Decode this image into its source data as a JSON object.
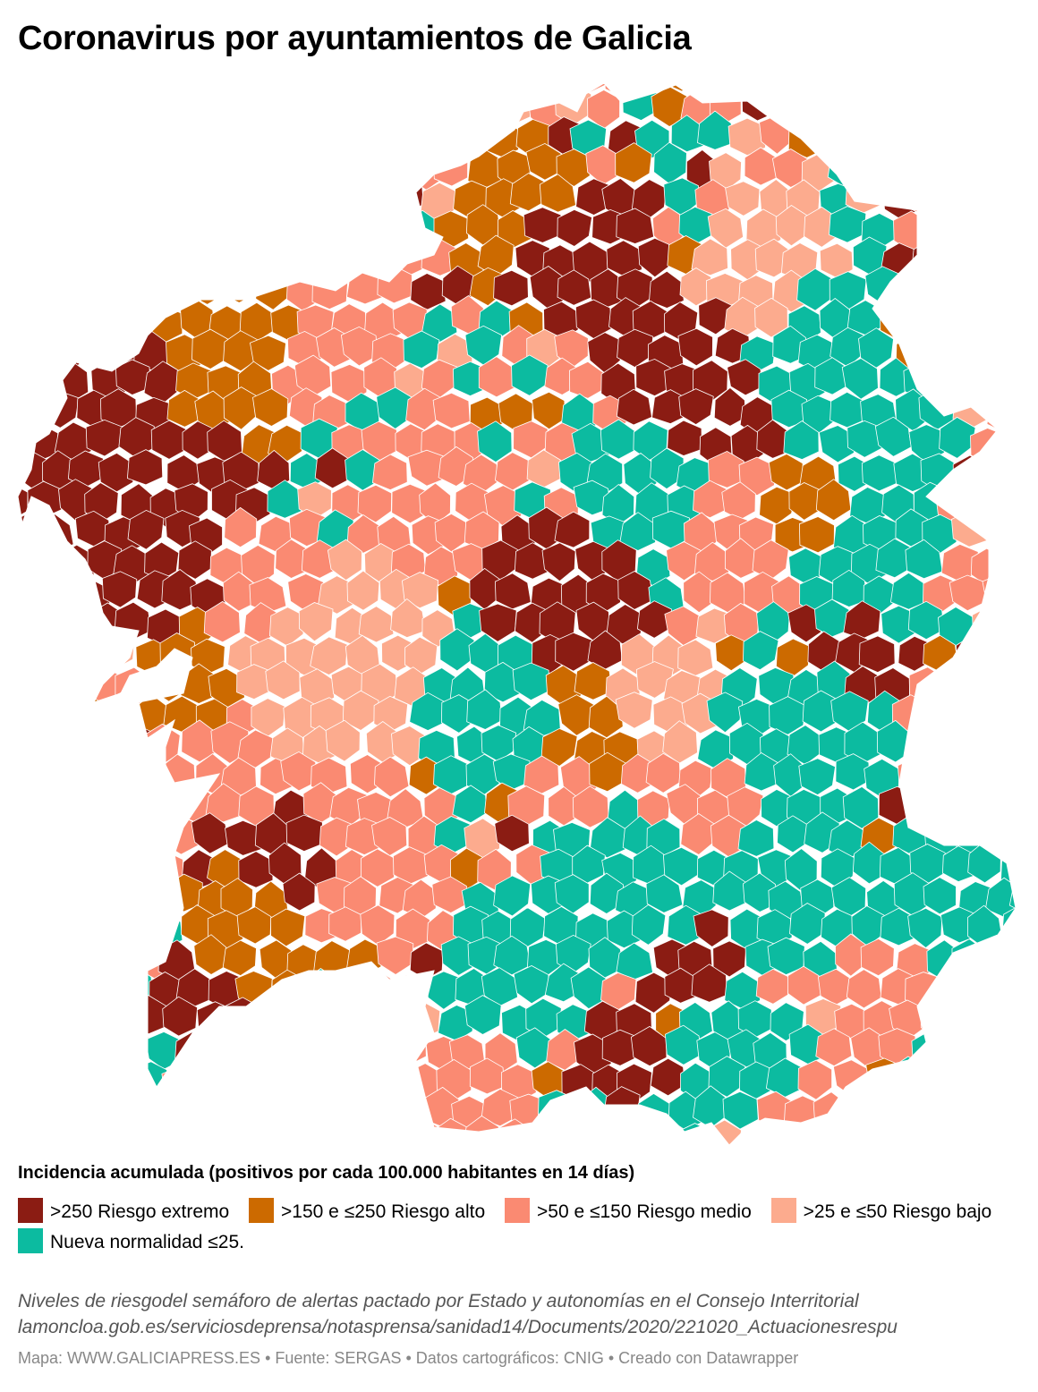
{
  "title": "Coronavirus por ayuntamientos de Galicia",
  "legend": {
    "title": "Incidencia acumulada (positivos por cada 100.000 habitantes en 14 días)",
    "items": [
      {
        "label": ">250 Riesgo extremo",
        "color": "#8b1c13"
      },
      {
        "label": ">150 e ≤250 Riesgo alto",
        "color": "#cc6a00"
      },
      {
        "label": ">50 e ≤150 Riesgo medio",
        "color": "#fa8a72"
      },
      {
        "label": ">25 e ≤50 Riesgo bajo",
        "color": "#fcab8e"
      },
      {
        "label": "Nueva normalidad ≤25.",
        "color": "#0cbba0"
      }
    ]
  },
  "notes": {
    "line1": "Niveles de riesgodel semáforo de alertas pactado por Estado y autonomías en el Consejo Interritorial",
    "line2": "lamoncloa.gob.es/serviciosdeprensa/notasprensa/sanidad14/Documents/2020/221020_Actuacionesrespu"
  },
  "footer": {
    "map": "Mapa: WWW.GALICIAPRESS.ES",
    "source": "Fuente: SERGAS",
    "carto": "Datos cartográficos: CNIG",
    "tool": "Creado con Datawrapper",
    "separator": " • "
  }
}
